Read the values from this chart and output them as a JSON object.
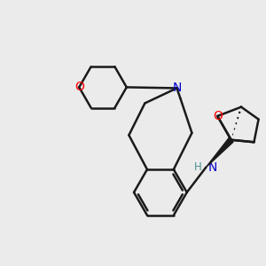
{
  "bg_color": "#ebebeb",
  "atom_colors": {
    "N": "#0000cc",
    "O": "#ff0000",
    "NH": "#4a9090",
    "C": "#000000"
  },
  "bond_color": "#1a1a1a",
  "bond_width": 1.8,
  "figsize": [
    3.0,
    3.0
  ],
  "dpi": 100
}
